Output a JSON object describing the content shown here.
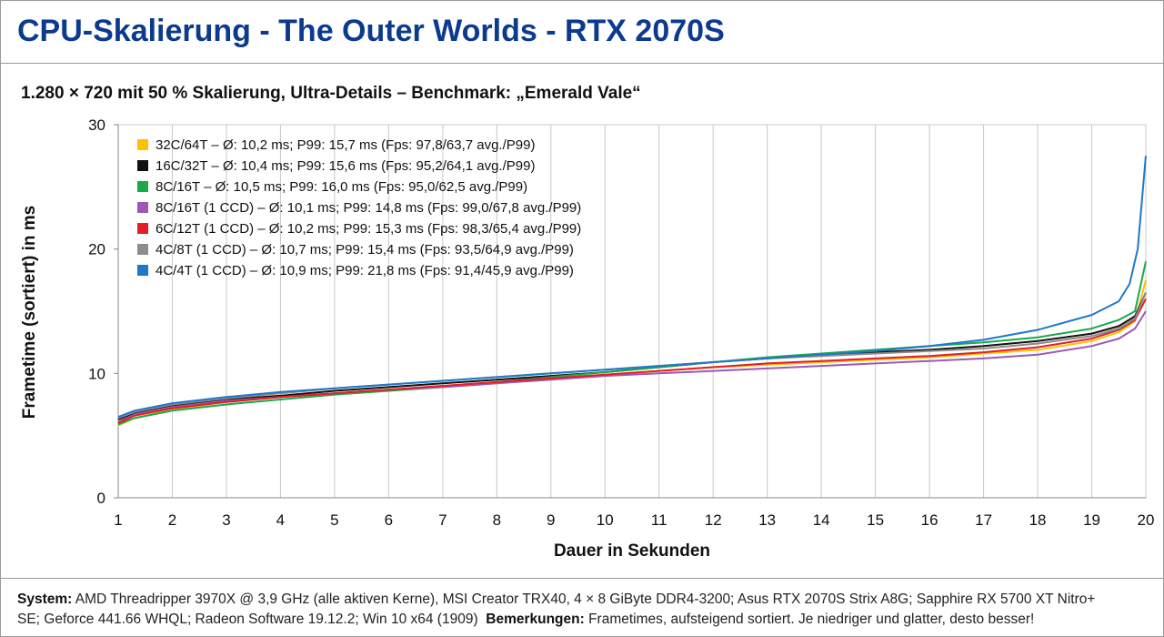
{
  "title": "CPU-Skalierung - The Outer Worlds - RTX 2070S",
  "subtitle": "1.280 × 720 mit 50 % Skalierung, Ultra-Details – Benchmark: „Emerald Vale“",
  "footer": {
    "system_label": "System:",
    "system_line1": "AMD Threadripper 3970X @ 3,9 GHz (alle aktiven Kerne), MSI Creator TRX40, 4 × 8 GiByte DDR4-3200; Asus RTX 2070S Strix A8G; Sapphire RX 5700 XT Nitro+",
    "system_line2": "SE; Geforce 441.66 WHQL; Radeon Software 19.12.2; Win 10 x64 (1909)",
    "remarks_label": "Bemerkungen:",
    "remarks": "Frametimes, aufsteigend sortiert. Je niedriger und glatter, desto besser!"
  },
  "chart_data": {
    "type": "line",
    "xlabel": "Dauer in Sekunden",
    "ylabel": "Frametime (sortiert) in ms",
    "xlim": [
      1,
      20
    ],
    "ylim": [
      0,
      30
    ],
    "xticks": [
      1,
      2,
      3,
      4,
      5,
      6,
      7,
      8,
      9,
      10,
      11,
      12,
      13,
      14,
      15,
      16,
      17,
      18,
      19,
      20
    ],
    "yticks": [
      0,
      10,
      20,
      30
    ],
    "grid": "vertical",
    "legend_position": "top-left",
    "series": [
      {
        "name": "32C/64T – Ø: 10,2 ms; P99: 15,7 ms  (Fps: 97,8/63,7 avg./P99)",
        "color": "#ffc000",
        "x": [
          1,
          1.3,
          2,
          3,
          4,
          5,
          6,
          7,
          8,
          9,
          10,
          11,
          12,
          13,
          14,
          15,
          16,
          17,
          18,
          19,
          19.5,
          19.8,
          20
        ],
        "y": [
          5.8,
          6.4,
          7.1,
          7.7,
          8.1,
          8.4,
          8.7,
          8.9,
          9.2,
          9.6,
          9.9,
          10.2,
          10.5,
          10.7,
          10.9,
          11.1,
          11.3,
          11.6,
          11.9,
          12.6,
          13.3,
          14.2,
          17.5
        ]
      },
      {
        "name": "16C/32T – Ø: 10,4 ms; P99: 15,6 ms  (Fps: 95,2/64,1 avg./P99)",
        "color": "#111111",
        "x": [
          1,
          1.3,
          2,
          3,
          4,
          5,
          6,
          7,
          8,
          9,
          10,
          11,
          12,
          13,
          14,
          15,
          16,
          17,
          18,
          19,
          19.5,
          19.8,
          20
        ],
        "y": [
          6.3,
          6.8,
          7.4,
          7.9,
          8.2,
          8.6,
          8.9,
          9.2,
          9.5,
          9.8,
          10.1,
          10.5,
          10.9,
          11.2,
          11.5,
          11.7,
          11.9,
          12.2,
          12.6,
          13.2,
          13.8,
          14.6,
          16.5
        ]
      },
      {
        "name": "8C/16T – Ø: 10,5 ms; P99: 16,0 ms  (Fps: 95,0/62,5 avg./P99)",
        "color": "#1aa84b",
        "x": [
          1,
          1.3,
          2,
          3,
          4,
          5,
          6,
          7,
          8,
          9,
          10,
          11,
          12,
          13,
          14,
          15,
          16,
          17,
          18,
          19,
          19.5,
          19.8,
          20
        ],
        "y": [
          5.9,
          6.4,
          7.0,
          7.5,
          7.9,
          8.3,
          8.6,
          8.9,
          9.3,
          9.7,
          10.1,
          10.5,
          10.9,
          11.3,
          11.6,
          11.9,
          12.2,
          12.5,
          12.9,
          13.6,
          14.3,
          15.0,
          19.0
        ]
      },
      {
        "name": "8C/16T (1 CCD) – Ø: 10,1 ms; P99: 14,8 ms  (Fps: 99,0/67,8 avg./P99)",
        "color": "#9b59b6",
        "x": [
          1,
          1.3,
          2,
          3,
          4,
          5,
          6,
          7,
          8,
          9,
          10,
          11,
          12,
          13,
          14,
          15,
          16,
          17,
          18,
          19,
          19.5,
          19.8,
          20
        ],
        "y": [
          6.1,
          6.7,
          7.3,
          7.8,
          8.1,
          8.4,
          8.7,
          8.9,
          9.2,
          9.5,
          9.8,
          10.0,
          10.2,
          10.4,
          10.6,
          10.8,
          11.0,
          11.2,
          11.5,
          12.2,
          12.8,
          13.6,
          15.0
        ]
      },
      {
        "name": "6C/12T (1 CCD) – Ø: 10,2 ms; P99: 15,3 ms  (Fps: 98,3/65,4 avg./P99)",
        "color": "#e31e24",
        "x": [
          1,
          1.3,
          2,
          3,
          4,
          5,
          6,
          7,
          8,
          9,
          10,
          11,
          12,
          13,
          14,
          15,
          16,
          17,
          18,
          19,
          19.5,
          19.8,
          20
        ],
        "y": [
          6.0,
          6.6,
          7.2,
          7.7,
          8.1,
          8.4,
          8.7,
          9.0,
          9.3,
          9.6,
          9.9,
          10.2,
          10.5,
          10.8,
          11.0,
          11.2,
          11.4,
          11.7,
          12.1,
          12.8,
          13.5,
          14.3,
          16.0
        ]
      },
      {
        "name": "4C/8T (1 CCD) – Ø: 10,7 ms; P99: 15,4 ms  (Fps: 93,5/64,9 avg./P99)",
        "color": "#8c8c8c",
        "x": [
          1,
          1.3,
          2,
          3,
          4,
          5,
          6,
          7,
          8,
          9,
          10,
          11,
          12,
          13,
          14,
          15,
          16,
          17,
          18,
          19,
          19.5,
          19.8,
          20
        ],
        "y": [
          6.4,
          6.9,
          7.5,
          8.0,
          8.4,
          8.8,
          9.1,
          9.4,
          9.7,
          10.0,
          10.3,
          10.6,
          10.9,
          11.2,
          11.4,
          11.6,
          11.8,
          12.0,
          12.4,
          13.0,
          13.6,
          14.4,
          16.5
        ]
      },
      {
        "name": "4C/4T (1 CCD) – Ø: 10,9 ms; P99: 21,8 ms  (Fps: 91,4/45,9 avg./P99)",
        "color": "#1f78c8",
        "x": [
          1,
          1.3,
          2,
          3,
          4,
          5,
          6,
          7,
          8,
          9,
          10,
          11,
          12,
          13,
          14,
          15,
          16,
          17,
          18,
          19,
          19.5,
          19.7,
          19.85,
          20
        ],
        "y": [
          6.5,
          7.0,
          7.6,
          8.1,
          8.5,
          8.8,
          9.1,
          9.4,
          9.7,
          10.0,
          10.3,
          10.6,
          10.9,
          11.2,
          11.5,
          11.8,
          12.2,
          12.7,
          13.5,
          14.7,
          15.8,
          17.2,
          20.0,
          27.5
        ]
      }
    ]
  }
}
